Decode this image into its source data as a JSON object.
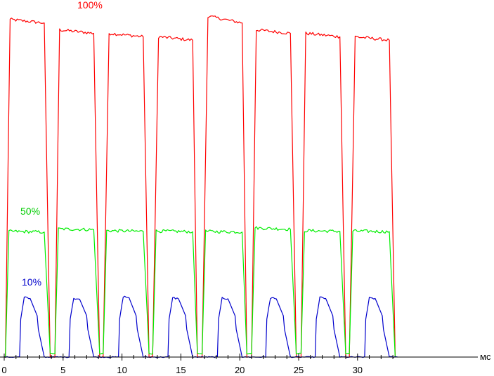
{
  "chart_data": {
    "type": "line",
    "title": "",
    "xlabel": "мс",
    "ylabel": "",
    "xlim": [
      0,
      33.4
    ],
    "ylim": [
      0,
      100
    ],
    "x_ticks": [
      0,
      5,
      10,
      15,
      20,
      25,
      30
    ],
    "grid": false,
    "legend": "none",
    "period_ms": 4.17,
    "series": [
      {
        "name": "100%",
        "color": "#ff0000",
        "on_level": [
          98,
          95,
          94,
          93,
          99,
          95,
          94,
          93
        ],
        "x": [
          0,
          0.1,
          0.5,
          3.4,
          3.9,
          4.3,
          4.7,
          7.6,
          8.1,
          8.4,
          8.9,
          11.8,
          12.3,
          12.6,
          13.1,
          16.0,
          16.4,
          16.8,
          17.3,
          20.2,
          20.6,
          21.0,
          21.4,
          24.3,
          24.8,
          25.2,
          25.6,
          28.5,
          29.0,
          29.3,
          29.8,
          32.7,
          33.2
        ],
        "y": [
          0,
          0,
          98,
          97,
          0,
          0,
          95,
          94,
          0,
          0,
          94,
          93,
          0,
          0,
          93,
          92,
          0,
          0,
          99,
          97,
          0,
          0,
          95,
          94,
          0,
          0,
          94,
          93,
          0,
          0,
          93,
          92,
          0
        ]
      },
      {
        "name": "50%",
        "color": "#00ee00",
        "on_level": [
          36.5,
          37.2,
          36.7,
          36.6,
          36.5,
          37.5,
          36.7,
          36.6
        ],
        "x": [
          0,
          0.1,
          0.4,
          3.4,
          3.9,
          4.3,
          4.6,
          7.6,
          8.1,
          8.4,
          8.7,
          11.8,
          12.3,
          12.6,
          12.9,
          16.0,
          16.4,
          16.8,
          17.1,
          20.2,
          20.6,
          21.0,
          21.3,
          24.3,
          24.8,
          25.2,
          25.5,
          28.5,
          29.0,
          29.3,
          29.6,
          32.7,
          33.2
        ],
        "y": [
          0,
          0,
          36.5,
          36.3,
          1,
          1,
          37.2,
          37.0,
          1,
          1,
          36.7,
          36.5,
          1,
          1,
          36.6,
          36.4,
          1,
          1,
          36.5,
          36.3,
          1,
          1,
          37.5,
          37.1,
          1,
          1,
          36.7,
          36.5,
          1,
          1,
          36.6,
          36.4,
          0
        ]
      },
      {
        "name": "10%",
        "color": "#0000cc",
        "on_level": [
          17.3,
          17.1,
          17.6,
          17.2,
          17.2,
          17.2,
          17.3,
          17.3
        ],
        "x": [
          0,
          1.3,
          1.4,
          1.7,
          2.2,
          2.8,
          2.9,
          3.4,
          3.9,
          5.5,
          5.6,
          5.9,
          6.4,
          7.0,
          7.1,
          7.6,
          8.1,
          9.7,
          9.8,
          10.1,
          10.6,
          11.2,
          11.3,
          11.8,
          12.3,
          13.9,
          14.0,
          14.3,
          14.8,
          15.4,
          15.5,
          16.0,
          16.4,
          18.1,
          18.2,
          18.5,
          19.0,
          19.6,
          19.7,
          20.2,
          20.6,
          22.2,
          22.3,
          22.6,
          23.1,
          23.7,
          23.8,
          24.3,
          24.8,
          26.4,
          26.5,
          26.8,
          27.3,
          27.9,
          28.0,
          28.5,
          29.0,
          30.6,
          30.7,
          31.0,
          31.5,
          32.1,
          32.2,
          32.7,
          33.4
        ],
        "y": [
          0,
          0,
          11,
          17.3,
          17.0,
          12,
          8,
          0,
          0,
          0,
          11,
          17.1,
          16.8,
          12,
          8,
          0,
          0,
          0,
          11,
          17.6,
          17.2,
          12,
          8,
          0,
          0,
          0,
          11,
          17.2,
          16.9,
          12,
          8,
          0,
          0,
          0,
          11,
          17.2,
          16.9,
          12,
          8,
          0,
          0,
          0,
          11,
          17.2,
          16.9,
          12,
          8,
          0,
          0,
          0,
          11,
          17.3,
          17.0,
          12,
          8,
          0,
          0,
          0,
          11,
          17.3,
          17.0,
          12,
          8,
          0,
          0
        ]
      }
    ]
  }
}
